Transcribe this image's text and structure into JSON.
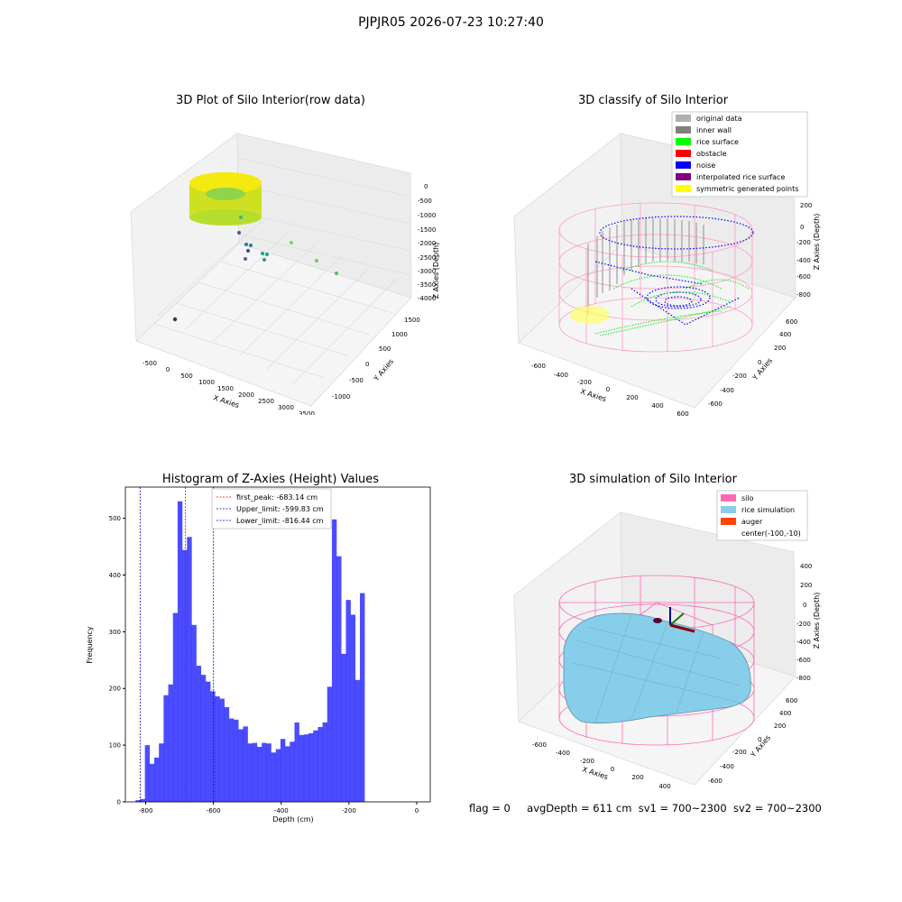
{
  "suptitle": "PJPJR05 2026-07-23 10:27:40",
  "panels": {
    "raw": {
      "title": "3D Plot of Silo Interior(row data)",
      "xlabel": "X Axies",
      "ylabel": "Y Axies",
      "zlabel": "Z Axies (Depth)",
      "xticks": [
        "-500",
        "0",
        "500",
        "1000",
        "1500",
        "2000",
        "2500",
        "3000",
        "3500"
      ],
      "yticks": [
        "-1000",
        "-500",
        "0",
        "500",
        "1000",
        "1500"
      ],
      "zticks": [
        "0",
        "-500",
        "-1000",
        "-1500",
        "-2000",
        "-2500",
        "-3000",
        "-3500",
        "-4000"
      ]
    },
    "classify": {
      "title": "3D classify of Silo Interior",
      "xlabel": "X Axies",
      "ylabel": "Y Axies",
      "zlabel": "Z Axies (Depth)",
      "xticks": [
        "-600",
        "-400",
        "-200",
        "0",
        "200",
        "400",
        "600"
      ],
      "yticks": [
        "-600",
        "-400",
        "-200",
        "0",
        "200",
        "400",
        "600"
      ],
      "zticks": [
        "200",
        "0",
        "-200",
        "-400",
        "-600",
        "-800"
      ],
      "legend": [
        {
          "label": "original data",
          "color": "#b0b0b0"
        },
        {
          "label": "inner wall",
          "color": "#808080"
        },
        {
          "label": "rice surface",
          "color": "#00ff00"
        },
        {
          "label": "obstacle",
          "color": "#ff0000"
        },
        {
          "label": "noise",
          "color": "#0000ff"
        },
        {
          "label": "interpolated rice surface",
          "color": "#800080"
        },
        {
          "label": "symmetric generated points",
          "color": "#ffff00"
        }
      ]
    },
    "simulation": {
      "title": "3D simulation of Silo Interior",
      "xlabel": "X Axies",
      "ylabel": "Y Axies",
      "zlabel": "Z Axies (Depth)",
      "xticks": [
        "-600",
        "-400",
        "-200",
        "0",
        "200",
        "400"
      ],
      "yticks": [
        "-600",
        "-400",
        "-200",
        "0",
        "200",
        "400",
        "600"
      ],
      "zticks": [
        "400",
        "200",
        "0",
        "-200",
        "-400",
        "-600",
        "-800"
      ],
      "legend": [
        {
          "label": "silo",
          "color": "#ff69b4"
        },
        {
          "label": "rice simulation",
          "color": "#87ceeb"
        },
        {
          "label": "auger",
          "color": "#ff4500"
        },
        {
          "label": "center(-100,-10)",
          "color": ""
        }
      ]
    }
  },
  "chart_data": {
    "type": "bar",
    "title": "Histogram of Z-Axies (Height) Values",
    "xlabel": "Depth (cm)",
    "ylabel": "Frequency",
    "xlim": [
      -860,
      40
    ],
    "ylim": [
      0,
      555
    ],
    "xticks": [
      -800,
      -600,
      -400,
      -200,
      0
    ],
    "yticks": [
      0,
      100,
      200,
      300,
      400,
      500
    ],
    "bar_color": "#0000ff",
    "bin_edges_start": -830,
    "bin_width": 13.8,
    "values": [
      3,
      5,
      100,
      67,
      78,
      103,
      188,
      207,
      333,
      530,
      444,
      467,
      312,
      240,
      224,
      212,
      195,
      186,
      182,
      167,
      147,
      145,
      128,
      133,
      103,
      104,
      97,
      104,
      103,
      87,
      93,
      111,
      98,
      106,
      140,
      118,
      119,
      121,
      126,
      132,
      140,
      203,
      498,
      433,
      261,
      356,
      330,
      215,
      368
    ],
    "vlines": [
      {
        "x": -683.14,
        "color": "#ff0000",
        "label": "first_peak: -683.14 cm"
      },
      {
        "x": -599.83,
        "color": "#0000cc",
        "label": "Upper_limit: -599.83 cm"
      },
      {
        "x": -816.44,
        "color": "#0000cc",
        "label": "Lower_limit: -816.44 cm"
      }
    ],
    "legend_position": "upper-center"
  },
  "status": {
    "flag": "flag = 0",
    "avg": "avgDepth = 611 cm",
    "sv1": "sv1 = 700~2300",
    "sv2": "sv2 = 700~2300"
  }
}
